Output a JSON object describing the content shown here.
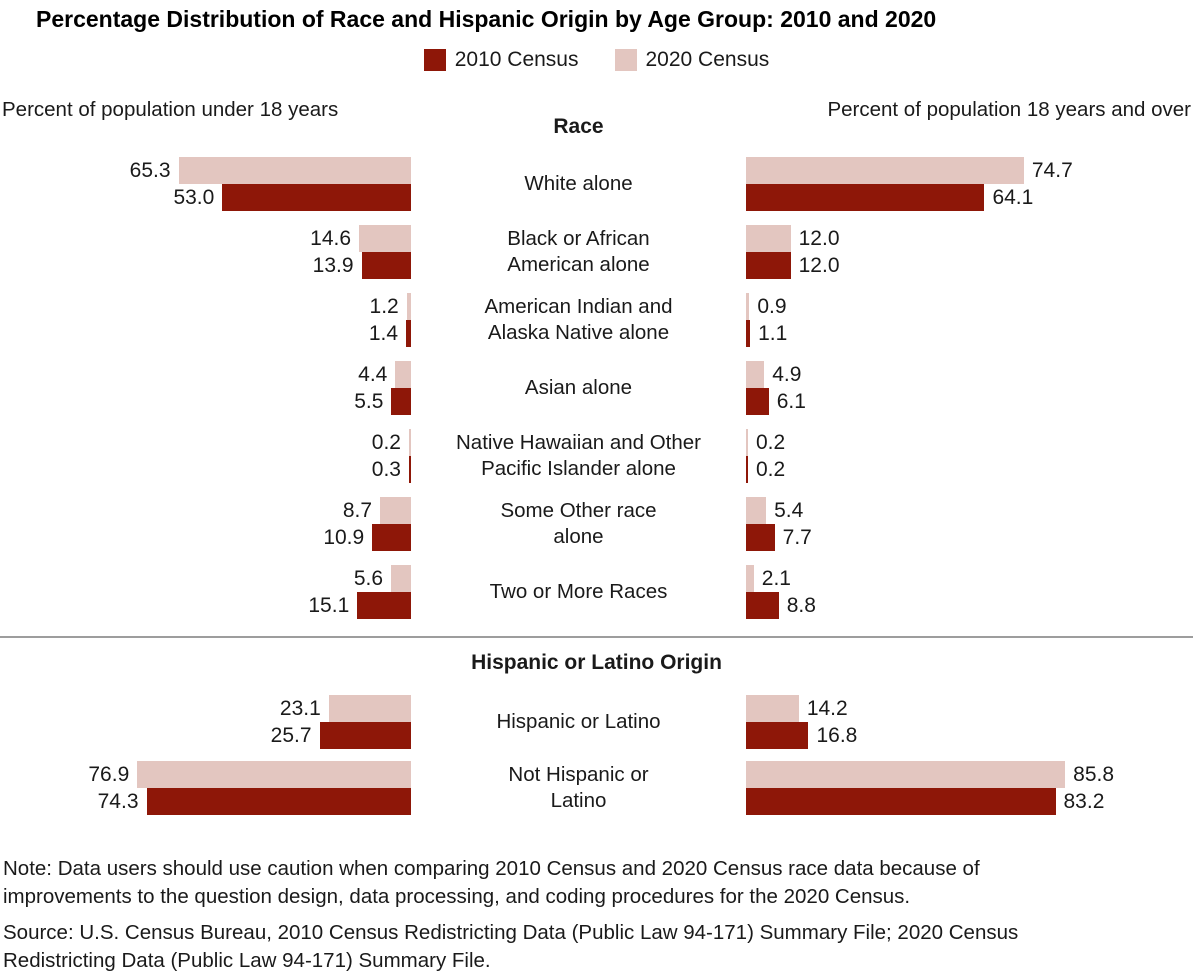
{
  "title": "Percentage Distribution of Race and Hispanic Origin by Age Group: 2010 and 2020",
  "legend": {
    "items": [
      {
        "label": "2010 Census",
        "color": "#8E1708"
      },
      {
        "label": "2020 Census",
        "color": "#E3C6C0"
      }
    ]
  },
  "panels": {
    "left_header": "Percent of population under 18 years",
    "right_header": "Percent of population 18 years and over"
  },
  "chart_data": {
    "type": "bar",
    "orientation": "horizontal-back-to-back",
    "value_unit": "percent",
    "panel_axis_max": {
      "under18": 76.9,
      "over18": 85.8
    },
    "series_order": [
      "2020 Census",
      "2010 Census"
    ],
    "sections": [
      {
        "header": "Race",
        "rows": [
          {
            "label_lines": [
              "White alone"
            ],
            "under18": {
              "c2020": {
                "value": 65.3,
                "label": "65.3"
              },
              "c2010": {
                "value": 53.0,
                "label": "53.0"
              }
            },
            "over18": {
              "c2020": {
                "value": 74.7,
                "label": "74.7"
              },
              "c2010": {
                "value": 64.1,
                "label": "64.1"
              }
            }
          },
          {
            "label_lines": [
              "Black or African",
              "American alone"
            ],
            "under18": {
              "c2020": {
                "value": 14.6,
                "label": "14.6"
              },
              "c2010": {
                "value": 13.9,
                "label": "13.9"
              }
            },
            "over18": {
              "c2020": {
                "value": 12.0,
                "label": "12.0"
              },
              "c2010": {
                "value": 12.0,
                "label": "12.0"
              }
            }
          },
          {
            "label_lines": [
              "American Indian and",
              "Alaska Native alone"
            ],
            "under18": {
              "c2020": {
                "value": 1.2,
                "label": "1.2"
              },
              "c2010": {
                "value": 1.4,
                "label": "1.4"
              }
            },
            "over18": {
              "c2020": {
                "value": 0.9,
                "label": "0.9"
              },
              "c2010": {
                "value": 1.1,
                "label": "1.1"
              }
            }
          },
          {
            "label_lines": [
              "Asian alone"
            ],
            "under18": {
              "c2020": {
                "value": 4.4,
                "label": "4.4"
              },
              "c2010": {
                "value": 5.5,
                "label": "5.5"
              }
            },
            "over18": {
              "c2020": {
                "value": 4.9,
                "label": "4.9"
              },
              "c2010": {
                "value": 6.1,
                "label": "6.1"
              }
            }
          },
          {
            "label_lines": [
              "Native Hawaiian and Other",
              "Pacific Islander alone"
            ],
            "under18": {
              "c2020": {
                "value": 0.2,
                "label": "0.2"
              },
              "c2010": {
                "value": 0.3,
                "label": "0.3"
              }
            },
            "over18": {
              "c2020": {
                "value": 0.2,
                "label": "0.2"
              },
              "c2010": {
                "value": 0.2,
                "label": "0.2"
              }
            }
          },
          {
            "label_lines": [
              "Some Other race",
              "alone"
            ],
            "under18": {
              "c2020": {
                "value": 8.7,
                "label": "8.7"
              },
              "c2010": {
                "value": 10.9,
                "label": "10.9"
              }
            },
            "over18": {
              "c2020": {
                "value": 5.4,
                "label": "5.4"
              },
              "c2010": {
                "value": 7.7,
                "label": "7.7"
              }
            }
          },
          {
            "label_lines": [
              "Two or More Races"
            ],
            "under18": {
              "c2020": {
                "value": 5.6,
                "label": "5.6"
              },
              "c2010": {
                "value": 15.1,
                "label": "15.1"
              }
            },
            "over18": {
              "c2020": {
                "value": 2.1,
                "label": "2.1"
              },
              "c2010": {
                "value": 8.8,
                "label": "8.8"
              }
            }
          }
        ]
      },
      {
        "header": "Hispanic or Latino Origin",
        "rows": [
          {
            "label_lines": [
              "Hispanic or Latino"
            ],
            "under18": {
              "c2020": {
                "value": 23.1,
                "label": "23.1"
              },
              "c2010": {
                "value": 25.7,
                "label": "25.7"
              }
            },
            "over18": {
              "c2020": {
                "value": 14.2,
                "label": "14.2"
              },
              "c2010": {
                "value": 16.8,
                "label": "16.8"
              }
            }
          },
          {
            "label_lines": [
              "Not Hispanic or",
              "Latino"
            ],
            "under18": {
              "c2020": {
                "value": 76.9,
                "label": "76.9"
              },
              "c2010": {
                "value": 74.3,
                "label": "74.3"
              }
            },
            "over18": {
              "c2020": {
                "value": 85.8,
                "label": "85.8"
              },
              "c2010": {
                "value": 83.2,
                "label": "83.2"
              }
            }
          }
        ]
      }
    ]
  },
  "note": "Note: Data users should use caution when comparing 2010 Census and 2020 Census race data because of improvements to the question design, data processing, and coding procedures for the 2020 Census.",
  "source": "Source: U.S. Census Bureau, 2010 Census Redistricting Data (Public Law 94-171) Summary File; 2020 Census Redistricting Data (Public Law 94-171) Summary File."
}
